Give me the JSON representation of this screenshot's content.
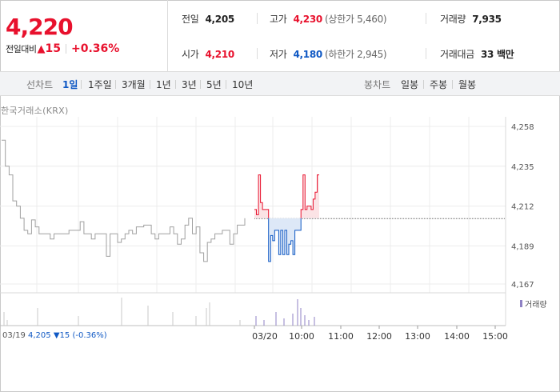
{
  "header": {
    "price": "4,220",
    "change_label": "전일대비",
    "change_symbol": "▲",
    "change_value": "15",
    "change_pct": "+0.36%",
    "stats": {
      "prev_close": {
        "label": "전일",
        "value": "4,205"
      },
      "high": {
        "label": "고가",
        "value": "4,230",
        "sub": "(상한가 5,460)"
      },
      "volume": {
        "label": "거래량",
        "value": "7,935"
      },
      "open": {
        "label": "시가",
        "value": "4,210"
      },
      "low": {
        "label": "저가",
        "value": "4,180",
        "sub": "(하한가 2,945)"
      },
      "amount": {
        "label": "거래대금",
        "value": "33 백만"
      }
    }
  },
  "toolbar": {
    "line_label": "선차트",
    "line_periods": [
      "1일",
      "1주일",
      "3개월",
      "1년",
      "3년",
      "5년",
      "10년"
    ],
    "active_period": "1일",
    "candle_label": "봉차트",
    "candle_periods": [
      "일봉",
      "주봉",
      "월봉"
    ]
  },
  "chart": {
    "exchange": "한국거래소(KRX)",
    "legend_volume": "거래량",
    "prev_info": {
      "date": "03/19",
      "price": "4,205",
      "change": "▼15",
      "pct": "(-0.36%)"
    },
    "colors": {
      "up": "#e8112d",
      "down": "#1059c4",
      "prev_line": "#a0a0a0",
      "volume_today": "#8f82c4"
    }
  },
  "chart_data": {
    "type": "line",
    "y_ticks": [
      "4,258",
      "4,235",
      "4,212",
      "4,189",
      "4,167"
    ],
    "ylim": [
      4167,
      4258
    ],
    "x_ticks": [
      "03/19",
      "03/20",
      "10:00",
      "11:00",
      "12:00",
      "13:00",
      "14:00",
      "15:00"
    ],
    "reference_price": 4205,
    "prev_day_series": [
      4250,
      4235,
      4230,
      4215,
      4212,
      4205,
      4198,
      4196,
      4204,
      4200,
      4196,
      4196,
      4196,
      4193,
      4196,
      4196,
      4196,
      4196,
      4198,
      4198,
      4198,
      4203,
      4196,
      4196,
      4193,
      4196,
      4196,
      4196,
      4183,
      4196,
      4196,
      4191,
      4193,
      4196,
      4198,
      4196,
      4200,
      4200,
      4201,
      4201,
      4196,
      4193,
      4196,
      4196,
      4196,
      4200,
      4196,
      4190,
      4193,
      4201,
      4205,
      4196,
      4200,
      4185,
      4180,
      4191,
      4193,
      4196,
      4196,
      4198,
      4198,
      4190,
      4196,
      4201,
      4201,
      4205
    ],
    "today_series": [
      4210,
      4207,
      4230,
      4214,
      4210,
      4210,
      4210,
      4180,
      4195,
      4192,
      4198,
      4198,
      4184,
      4198,
      4184,
      4198,
      4184,
      4190,
      4192,
      4184,
      4198,
      4198,
      4198,
      4210,
      4230,
      4210,
      4212,
      4212,
      4210,
      4216,
      4220,
      4230,
      4230
    ]
  }
}
